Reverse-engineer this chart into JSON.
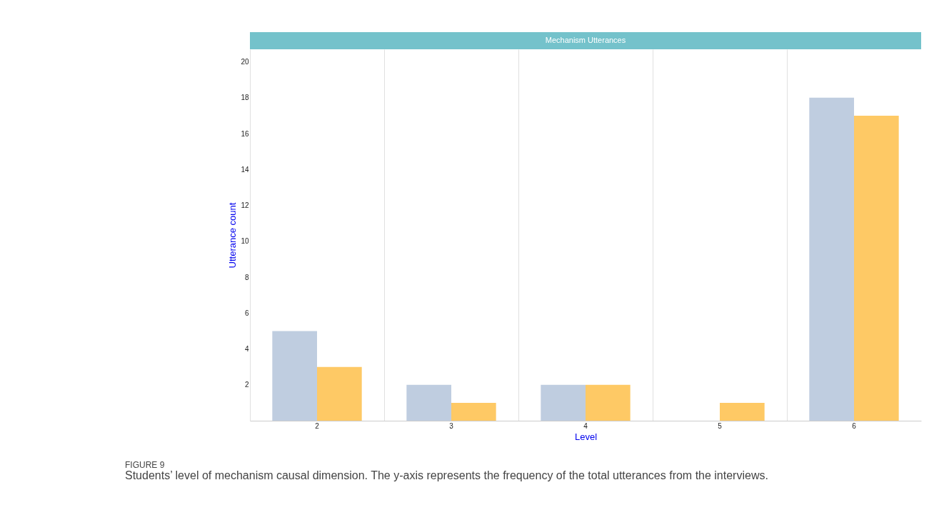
{
  "chart_data": {
    "type": "bar",
    "title": "Mechanism Utterances",
    "xlabel": "Level",
    "ylabel": "Utterance count",
    "categories": [
      "2",
      "3",
      "4",
      "5",
      "6"
    ],
    "series": [
      {
        "color": "#bfcde0",
        "values": [
          5,
          2,
          2,
          0,
          18
        ]
      },
      {
        "color": "#fec965",
        "values": [
          3,
          1,
          2,
          1,
          17
        ]
      }
    ],
    "ylim": [
      0,
      20.7
    ],
    "yticks": [
      2,
      4,
      6,
      8,
      10,
      12,
      14,
      16,
      18,
      20
    ],
    "grid": "x",
    "annotations": [
      "FIGURE 9",
      "Students’ level of mechanism causal dimension. The y-axis represents the frequency of the total utterances from the interviews."
    ]
  }
}
